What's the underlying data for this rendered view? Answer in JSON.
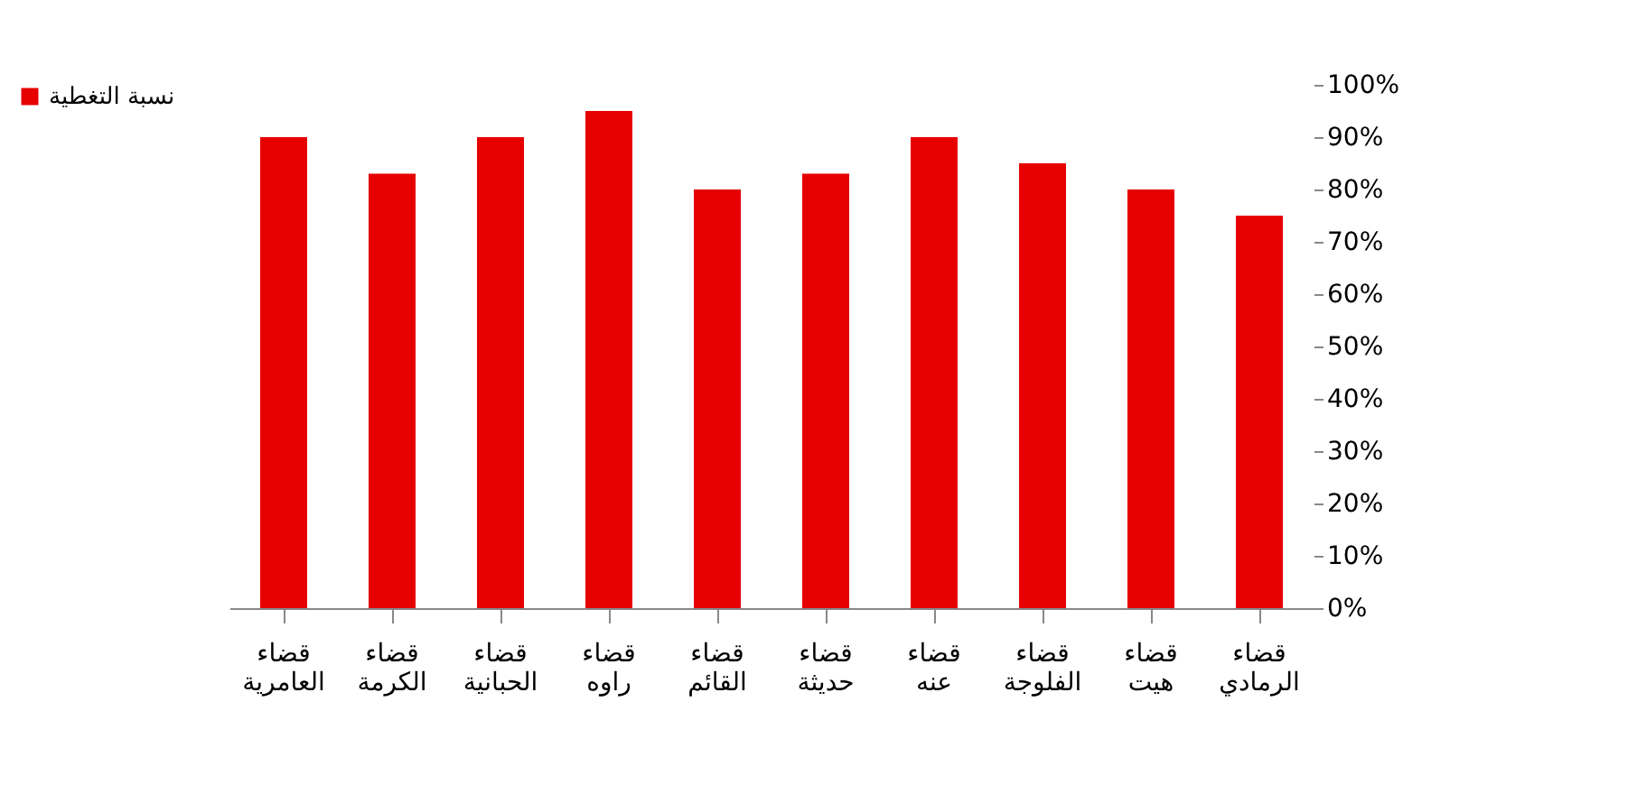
{
  "chart_data": {
    "type": "bar",
    "categories": [
      "قضاء العامرية",
      "قضاء الكرمة",
      "قضاء الحبانية",
      "قضاء راوه",
      "قضاء القائم",
      "قضاء حديثة",
      "قضاء عنه",
      "قضاء الفلوجة",
      "قضاء هيت",
      "قضاء الرمادي"
    ],
    "series": [
      {
        "name": "نسبة التغطية",
        "color": "#e60000",
        "values": [
          90,
          83,
          90,
          95,
          80,
          83,
          90,
          85,
          80,
          75
        ]
      }
    ],
    "ylim": [
      0,
      100
    ],
    "yticks": [
      {
        "value": 0,
        "label": "0%"
      },
      {
        "value": 10,
        "label": "10%"
      },
      {
        "value": 20,
        "label": "20%"
      },
      {
        "value": 30,
        "label": "30%"
      },
      {
        "value": 40,
        "label": "40%"
      },
      {
        "value": 50,
        "label": "50%"
      },
      {
        "value": 60,
        "label": "60%"
      },
      {
        "value": 70,
        "label": "70%"
      },
      {
        "value": 80,
        "label": "80%"
      },
      {
        "value": 90,
        "label": "90%"
      },
      {
        "value": 100,
        "label": "100%"
      }
    ],
    "grid": false,
    "legend": "left"
  }
}
